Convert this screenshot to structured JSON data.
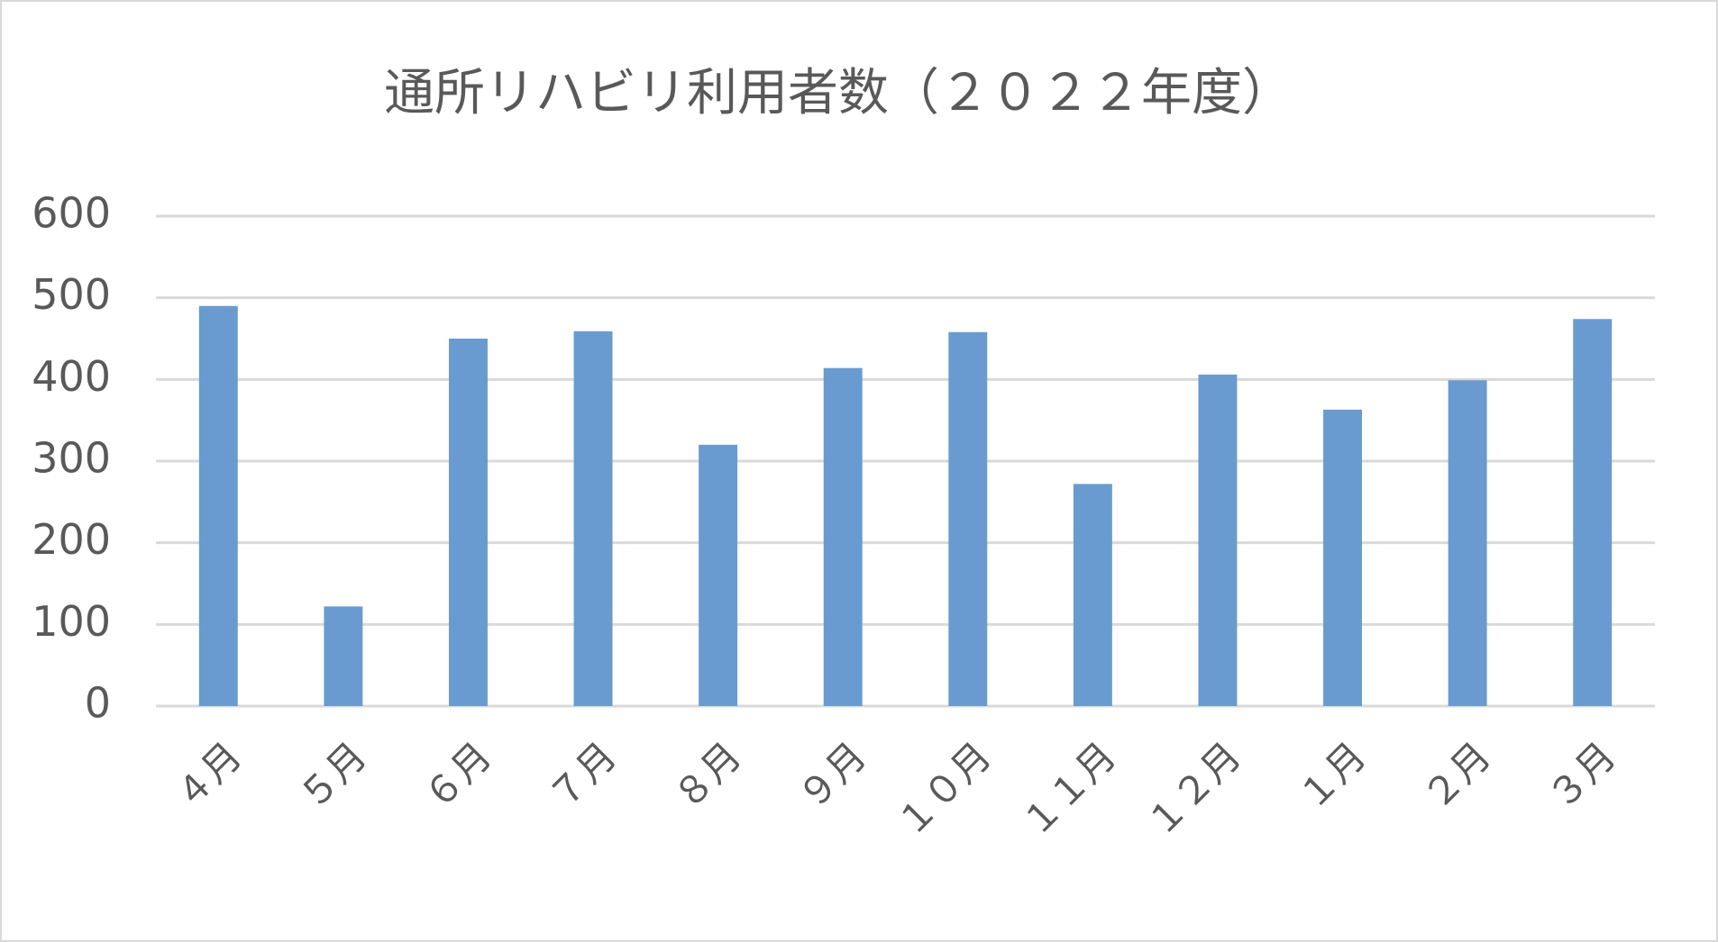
{
  "chart_data": {
    "type": "bar",
    "title": "通所リハビリ利用者数（２０２２年度）",
    "categories": [
      "４月",
      "５月",
      "６月",
      "７月",
      "８月",
      "９月",
      "１０月",
      "１１月",
      "１２月",
      "１月",
      "２月",
      "３月"
    ],
    "values": [
      490,
      122,
      450,
      459,
      320,
      414,
      458,
      272,
      406,
      363,
      399,
      474
    ],
    "color": "#6a9bd0",
    "ylim": [
      0,
      600
    ],
    "yticks": [
      0,
      100,
      200,
      300,
      400,
      500,
      600
    ],
    "grid": true
  }
}
